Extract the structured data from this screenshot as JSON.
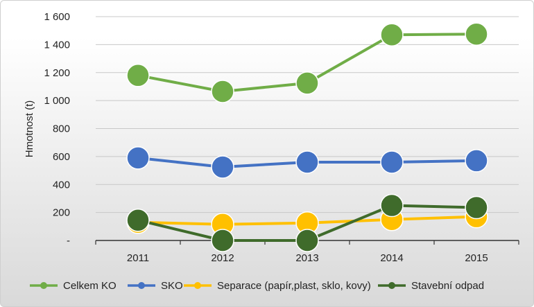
{
  "chart_data": {
    "type": "line",
    "title": "",
    "xlabel": "",
    "ylabel": "Hmotnost (t)",
    "categories": [
      "2011",
      "2012",
      "2013",
      "2014",
      "2015"
    ],
    "ylim": [
      0,
      1600
    ],
    "yticks": [
      0,
      200,
      400,
      600,
      800,
      1000,
      1200,
      1400,
      1600
    ],
    "ytick_labels": [
      "-",
      "200",
      "400",
      "600",
      "800",
      "1 000",
      "1 200",
      "1 400",
      "1 600"
    ],
    "grid": true,
    "legend_position": "bottom",
    "series": [
      {
        "name": "Celkem KO",
        "color": "#70ad47",
        "values": [
          1180,
          1065,
          1125,
          1470,
          1475
        ]
      },
      {
        "name": "SKO",
        "color": "#4472c4",
        "values": [
          590,
          525,
          560,
          560,
          570
        ]
      },
      {
        "name": "Separace (papír,plast, sklo, kovy)",
        "color": "#ffc000",
        "values": [
          130,
          115,
          125,
          150,
          170
        ]
      },
      {
        "name": "Stavební odpad",
        "color": "#3f6b2b",
        "values": [
          145,
          0,
          0,
          250,
          235
        ]
      }
    ]
  }
}
